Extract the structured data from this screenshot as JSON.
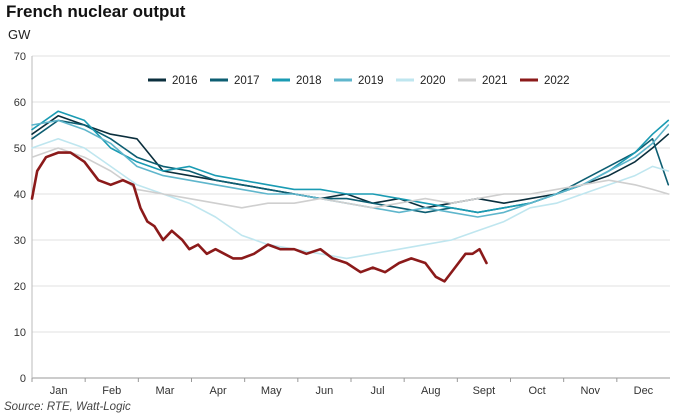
{
  "header": {
    "title": "French nuclear output",
    "unit": "GW"
  },
  "footer": {
    "source": "Source: RTE, Watt-Logic"
  },
  "colors": {
    "2016": "#0b2f3d",
    "2017": "#0d5e72",
    "2018": "#1a9bb3",
    "2019": "#5fb6cc",
    "2020": "#bfe6ef",
    "2021": "#cfcfcf",
    "2022": "#8b1a1a"
  },
  "chart_data": {
    "type": "line",
    "title": "French nuclear output",
    "ylabel": "GW",
    "ylim": [
      0,
      70
    ],
    "yticks": [
      0,
      10,
      20,
      30,
      40,
      50,
      60,
      70
    ],
    "xlim": [
      0,
      365
    ],
    "xticks": [
      "Jan",
      "Feb",
      "Mar",
      "Apr",
      "May",
      "Jun",
      "Jul",
      "Aug",
      "Sept",
      "Oct",
      "Nov",
      "Dec"
    ],
    "grid": true,
    "legend": "top",
    "series": [
      {
        "name": "2016",
        "x": [
          0,
          15,
          30,
          45,
          60,
          75,
          90,
          105,
          120,
          135,
          150,
          165,
          180,
          195,
          210,
          225,
          240,
          255,
          270,
          285,
          300,
          315,
          330,
          345,
          355,
          364
        ],
        "y": [
          53,
          57,
          55,
          53,
          52,
          45,
          44,
          43,
          42,
          41,
          40,
          39,
          40,
          38,
          39,
          37,
          38,
          39,
          38,
          39,
          40,
          42,
          44,
          47,
          50,
          53
        ]
      },
      {
        "name": "2017",
        "x": [
          0,
          15,
          30,
          45,
          60,
          75,
          90,
          105,
          120,
          135,
          150,
          165,
          180,
          195,
          210,
          225,
          240,
          255,
          270,
          285,
          300,
          315,
          330,
          345,
          355,
          364
        ],
        "y": [
          52,
          56,
          55,
          52,
          48,
          46,
          45,
          43,
          42,
          41,
          40,
          39,
          39,
          38,
          37,
          36,
          37,
          36,
          37,
          38,
          40,
          43,
          46,
          49,
          52,
          42
        ]
      },
      {
        "name": "2018",
        "x": [
          0,
          15,
          30,
          45,
          60,
          75,
          90,
          105,
          120,
          135,
          150,
          165,
          180,
          195,
          210,
          225,
          240,
          255,
          270,
          285,
          300,
          315,
          330,
          345,
          355,
          364
        ],
        "y": [
          54,
          58,
          56,
          50,
          47,
          45,
          46,
          44,
          43,
          42,
          41,
          41,
          40,
          40,
          39,
          38,
          37,
          36,
          37,
          38,
          40,
          42,
          45,
          49,
          53,
          56
        ]
      },
      {
        "name": "2019",
        "x": [
          0,
          15,
          30,
          45,
          60,
          75,
          90,
          105,
          120,
          135,
          150,
          165,
          180,
          195,
          210,
          225,
          240,
          255,
          270,
          285,
          300,
          315,
          330,
          345,
          355,
          364
        ],
        "y": [
          55,
          56,
          54,
          51,
          46,
          44,
          43,
          42,
          41,
          40,
          40,
          39,
          38,
          37,
          36,
          37,
          36,
          35,
          36,
          38,
          40,
          42,
          45,
          48,
          51,
          55
        ]
      },
      {
        "name": "2020",
        "x": [
          0,
          15,
          30,
          45,
          60,
          75,
          90,
          105,
          120,
          135,
          150,
          165,
          180,
          195,
          210,
          225,
          240,
          255,
          270,
          285,
          300,
          315,
          330,
          345,
          355,
          364
        ],
        "y": [
          50,
          52,
          50,
          46,
          42,
          40,
          38,
          35,
          31,
          29,
          28,
          27,
          26,
          27,
          28,
          29,
          30,
          32,
          34,
          37,
          38,
          40,
          42,
          44,
          46,
          45
        ]
      },
      {
        "name": "2021",
        "x": [
          0,
          15,
          30,
          45,
          60,
          75,
          90,
          105,
          120,
          135,
          150,
          165,
          180,
          195,
          210,
          225,
          240,
          255,
          270,
          285,
          300,
          315,
          330,
          345,
          355,
          364
        ],
        "y": [
          48,
          50,
          48,
          45,
          41,
          40,
          39,
          38,
          37,
          38,
          38,
          39,
          38,
          37,
          38,
          39,
          38,
          39,
          40,
          40,
          41,
          42,
          43,
          42,
          41,
          40
        ]
      },
      {
        "name": "2022",
        "x": [
          0,
          3,
          8,
          15,
          22,
          30,
          38,
          45,
          52,
          58,
          62,
          66,
          70,
          75,
          80,
          86,
          90,
          95,
          100,
          105,
          110,
          115,
          120,
          127,
          135,
          142,
          150,
          157,
          165,
          172,
          180,
          188,
          195,
          202,
          210,
          217,
          225,
          231,
          236,
          242,
          248,
          252,
          256,
          260
        ],
        "y": [
          39,
          45,
          48,
          49,
          49,
          47,
          43,
          42,
          43,
          42,
          37,
          34,
          33,
          30,
          32,
          30,
          28,
          29,
          27,
          28,
          27,
          26,
          26,
          27,
          29,
          28,
          28,
          27,
          28,
          26,
          25,
          23,
          24,
          23,
          25,
          26,
          25,
          22,
          21,
          24,
          27,
          27,
          28,
          25
        ]
      }
    ]
  }
}
